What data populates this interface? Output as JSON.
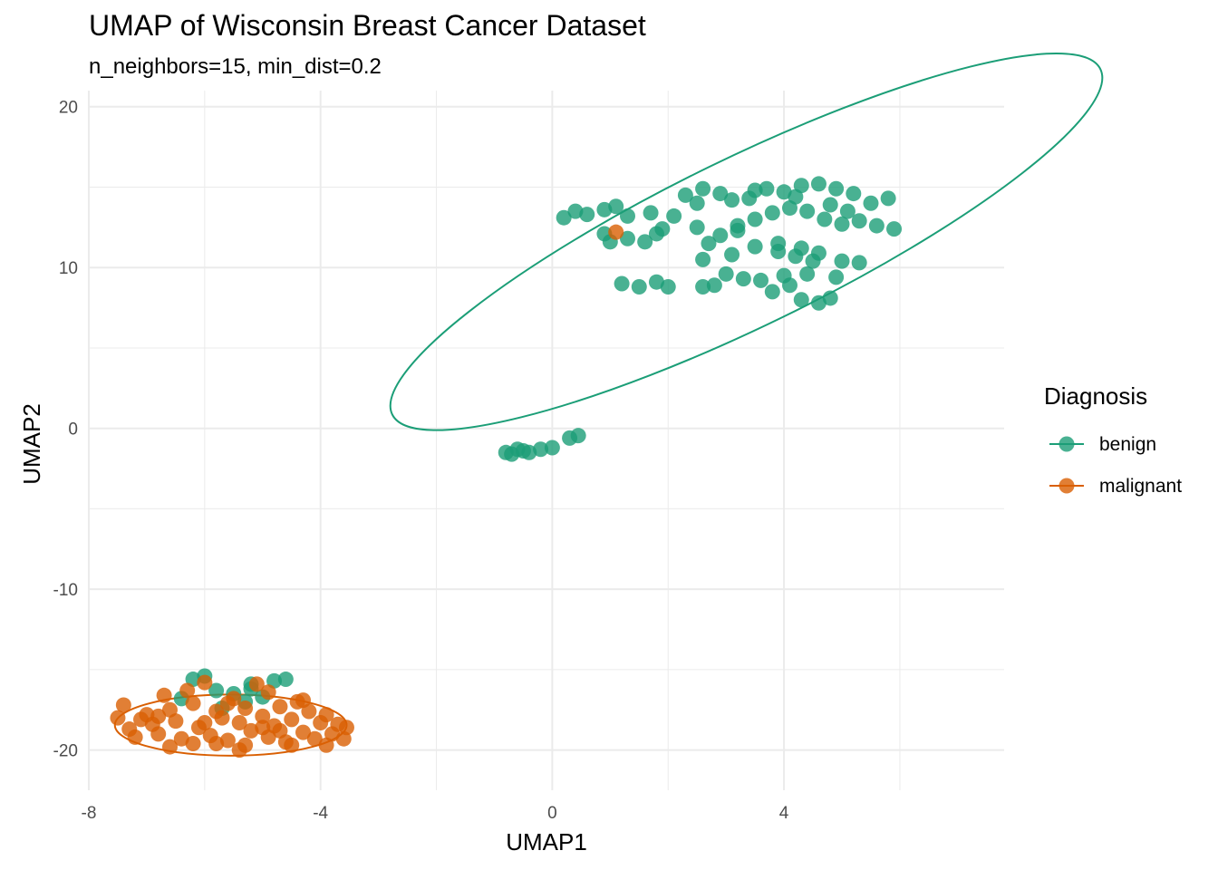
{
  "chart_data": {
    "type": "scatter",
    "title": "UMAP of Wisconsin Breast Cancer Dataset",
    "subtitle": "n_neighbors=15, min_dist=0.2",
    "xlabel": "UMAP1",
    "ylabel": "UMAP2",
    "xlim": [
      -8.0,
      7.8
    ],
    "ylim": [
      -22.5,
      21.0
    ],
    "x_ticks": [
      -8,
      -4,
      0,
      4
    ],
    "y_ticks": [
      -20,
      -10,
      0,
      10,
      20
    ],
    "grid": true,
    "legend": {
      "title": "Diagnosis",
      "placement": "right"
    },
    "ellipses": true,
    "series": [
      {
        "name": "benign",
        "color": "#1b9e77",
        "ellipse": {
          "cx": 3.35,
          "cy": 11.6,
          "rx": 6.8,
          "ry": 5.2,
          "angle": 26
        },
        "points": [
          [
            0.2,
            13.1
          ],
          [
            0.4,
            13.5
          ],
          [
            0.6,
            13.3
          ],
          [
            0.9,
            13.6
          ],
          [
            1.1,
            13.8
          ],
          [
            1.3,
            13.2
          ],
          [
            1.0,
            11.6
          ],
          [
            1.3,
            11.8
          ],
          [
            1.6,
            11.6
          ],
          [
            1.9,
            12.4
          ],
          [
            1.7,
            13.4
          ],
          [
            2.1,
            13.2
          ],
          [
            2.5,
            12.5
          ],
          [
            2.7,
            11.5
          ],
          [
            2.9,
            12.0
          ],
          [
            2.3,
            14.5
          ],
          [
            2.6,
            14.9
          ],
          [
            2.9,
            14.6
          ],
          [
            3.1,
            14.2
          ],
          [
            3.4,
            14.3
          ],
          [
            3.7,
            14.9
          ],
          [
            4.0,
            14.7
          ],
          [
            4.3,
            15.1
          ],
          [
            4.6,
            15.2
          ],
          [
            4.9,
            14.9
          ],
          [
            5.2,
            14.6
          ],
          [
            5.5,
            14.0
          ],
          [
            5.8,
            14.3
          ],
          [
            5.9,
            12.4
          ],
          [
            5.6,
            12.6
          ],
          [
            5.3,
            12.9
          ],
          [
            5.0,
            12.7
          ],
          [
            4.7,
            13.0
          ],
          [
            4.4,
            13.5
          ],
          [
            4.1,
            13.7
          ],
          [
            3.8,
            13.4
          ],
          [
            3.5,
            13.0
          ],
          [
            3.2,
            12.6
          ],
          [
            3.5,
            11.3
          ],
          [
            3.9,
            11.5
          ],
          [
            4.3,
            11.2
          ],
          [
            4.6,
            10.9
          ],
          [
            4.5,
            10.4
          ],
          [
            5.0,
            10.4
          ],
          [
            5.3,
            10.3
          ],
          [
            1.2,
            9.0
          ],
          [
            1.5,
            8.8
          ],
          [
            1.8,
            9.1
          ],
          [
            2.0,
            8.8
          ],
          [
            2.6,
            8.8
          ],
          [
            2.8,
            8.9
          ],
          [
            3.0,
            9.6
          ],
          [
            3.3,
            9.3
          ],
          [
            3.6,
            9.2
          ],
          [
            3.8,
            8.5
          ],
          [
            4.1,
            8.9
          ],
          [
            4.3,
            8.0
          ],
          [
            4.6,
            7.8
          ],
          [
            4.8,
            8.1
          ],
          [
            4.0,
            9.5
          ],
          [
            4.4,
            9.6
          ],
          [
            4.9,
            9.4
          ],
          [
            3.9,
            11.0
          ],
          [
            3.2,
            12.3
          ],
          [
            2.5,
            14.0
          ],
          [
            4.8,
            13.9
          ],
          [
            5.1,
            13.5
          ],
          [
            3.5,
            14.8
          ],
          [
            4.2,
            14.4
          ],
          [
            1.8,
            12.1
          ],
          [
            0.9,
            12.1
          ],
          [
            2.6,
            10.5
          ],
          [
            3.1,
            10.8
          ],
          [
            4.2,
            10.7
          ],
          [
            -0.8,
            -1.5
          ],
          [
            -0.6,
            -1.3
          ],
          [
            -0.4,
            -1.5
          ],
          [
            -0.2,
            -1.3
          ],
          [
            0.0,
            -1.2
          ],
          [
            -0.5,
            -1.4
          ],
          [
            -0.7,
            -1.6
          ],
          [
            0.3,
            -0.6
          ],
          [
            0.45,
            -0.45
          ],
          [
            -6.0,
            -15.4
          ],
          [
            -6.2,
            -15.6
          ],
          [
            -5.8,
            -16.3
          ],
          [
            -5.5,
            -16.5
          ],
          [
            -5.2,
            -16.2
          ],
          [
            -5.2,
            -15.9
          ],
          [
            -4.8,
            -15.7
          ],
          [
            -4.6,
            -15.6
          ],
          [
            -5.0,
            -16.7
          ],
          [
            -6.4,
            -16.8
          ],
          [
            -5.7,
            -17.4
          ],
          [
            -5.3,
            -17.0
          ]
        ]
      },
      {
        "name": "malignant",
        "color": "#d95f02",
        "ellipse": {
          "cx": -5.55,
          "cy": -18.45,
          "rx": 2.0,
          "ry": 1.9,
          "angle": 0
        },
        "points": [
          [
            1.1,
            12.2
          ],
          [
            -7.5,
            -18.0
          ],
          [
            -7.4,
            -17.2
          ],
          [
            -7.3,
            -18.7
          ],
          [
            -7.2,
            -19.2
          ],
          [
            -7.0,
            -17.8
          ],
          [
            -6.9,
            -18.4
          ],
          [
            -6.8,
            -19.0
          ],
          [
            -6.6,
            -17.5
          ],
          [
            -6.5,
            -18.2
          ],
          [
            -6.4,
            -19.3
          ],
          [
            -6.3,
            -16.3
          ],
          [
            -6.2,
            -17.1
          ],
          [
            -6.1,
            -18.6
          ],
          [
            -6.0,
            -15.8
          ],
          [
            -5.9,
            -19.1
          ],
          [
            -5.8,
            -17.6
          ],
          [
            -5.7,
            -18.0
          ],
          [
            -5.6,
            -19.4
          ],
          [
            -5.5,
            -16.8
          ],
          [
            -5.4,
            -18.3
          ],
          [
            -5.3,
            -17.4
          ],
          [
            -5.3,
            -19.7
          ],
          [
            -5.2,
            -18.8
          ],
          [
            -5.1,
            -15.9
          ],
          [
            -5.0,
            -17.9
          ],
          [
            -4.9,
            -19.2
          ],
          [
            -4.8,
            -18.5
          ],
          [
            -4.7,
            -17.3
          ],
          [
            -4.6,
            -19.5
          ],
          [
            -4.5,
            -18.1
          ],
          [
            -4.4,
            -17.0
          ],
          [
            -4.3,
            -18.9
          ],
          [
            -4.2,
            -17.6
          ],
          [
            -4.1,
            -19.3
          ],
          [
            -4.0,
            -18.3
          ],
          [
            -3.9,
            -17.8
          ],
          [
            -3.8,
            -19.0
          ],
          [
            -3.7,
            -18.4
          ],
          [
            -3.6,
            -19.3
          ],
          [
            -3.55,
            -18.6
          ],
          [
            -6.7,
            -16.6
          ],
          [
            -6.2,
            -19.6
          ],
          [
            -5.6,
            -17.1
          ],
          [
            -4.9,
            -16.4
          ],
          [
            -4.3,
            -16.9
          ],
          [
            -7.1,
            -18.1
          ],
          [
            -6.0,
            -18.3
          ],
          [
            -5.0,
            -18.6
          ],
          [
            -4.5,
            -19.7
          ],
          [
            -6.6,
            -19.8
          ],
          [
            -5.8,
            -19.6
          ],
          [
            -3.9,
            -19.7
          ],
          [
            -4.7,
            -18.8
          ],
          [
            -6.8,
            -17.9
          ],
          [
            -5.4,
            -20.0
          ]
        ]
      }
    ]
  }
}
